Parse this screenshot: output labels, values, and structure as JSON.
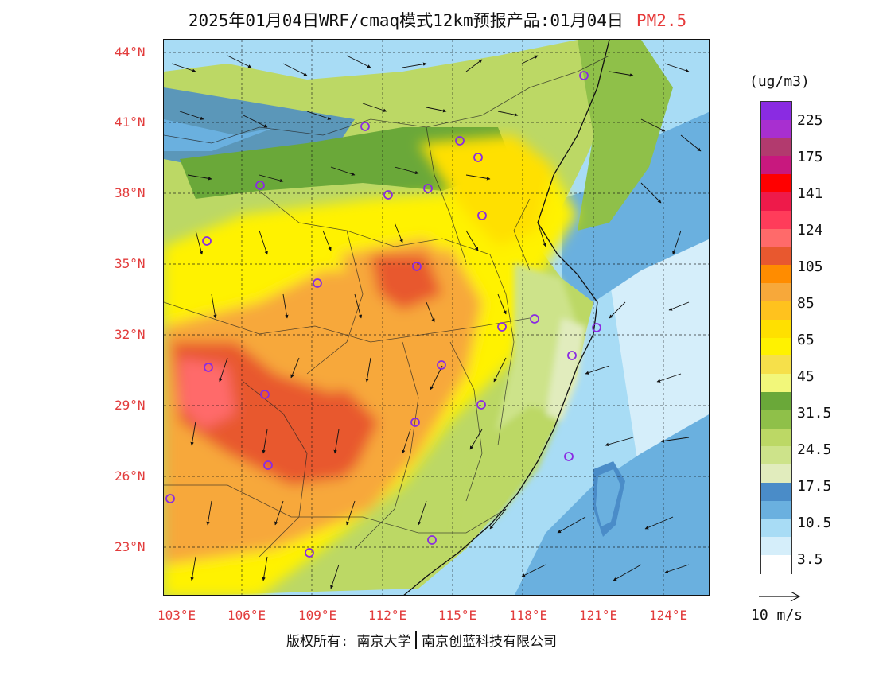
{
  "title": {
    "main": "2025年01月04日WRF/cmaq模式12km预报产品:01月04日",
    "pollutant": "PM2.5"
  },
  "axes": {
    "latitude_labels": [
      "44°N",
      "41°N",
      "38°N",
      "35°N",
      "32°N",
      "29°N",
      "26°N",
      "23°N"
    ],
    "longitude_labels": [
      "103°E",
      "106°E",
      "109°E",
      "112°E",
      "115°E",
      "118°E",
      "121°E",
      "124°E"
    ]
  },
  "colorbar": {
    "unit": "(ug/m3)",
    "labels": [
      "225",
      "175",
      "141",
      "124",
      "105",
      "85",
      "65",
      "45",
      "31.5",
      "24.5",
      "17.5",
      "10.5",
      "3.5"
    ],
    "colors": [
      "#8a2be2",
      "#a82fd0",
      "#b23a6e",
      "#c8187e",
      "#ff0000",
      "#ee1a4a",
      "#ff3c5a",
      "#ff6a6a",
      "#e8582f",
      "#ff8c00",
      "#f7a83a",
      "#ffc21e",
      "#ffe000",
      "#fff200",
      "#f6e04a",
      "#f2f77a",
      "#6aa839",
      "#8fc049",
      "#bcd865",
      "#cde38a",
      "#e1ecbd",
      "#4a8cc8",
      "#6ab0df",
      "#a8dcf5",
      "#d5eefa",
      "#ffffff"
    ]
  },
  "wind_reference": {
    "label": "10 m/s"
  },
  "footer": {
    "copyright": "版权所有: 南京大学",
    "company": "南京创蓝科技有限公司"
  }
}
